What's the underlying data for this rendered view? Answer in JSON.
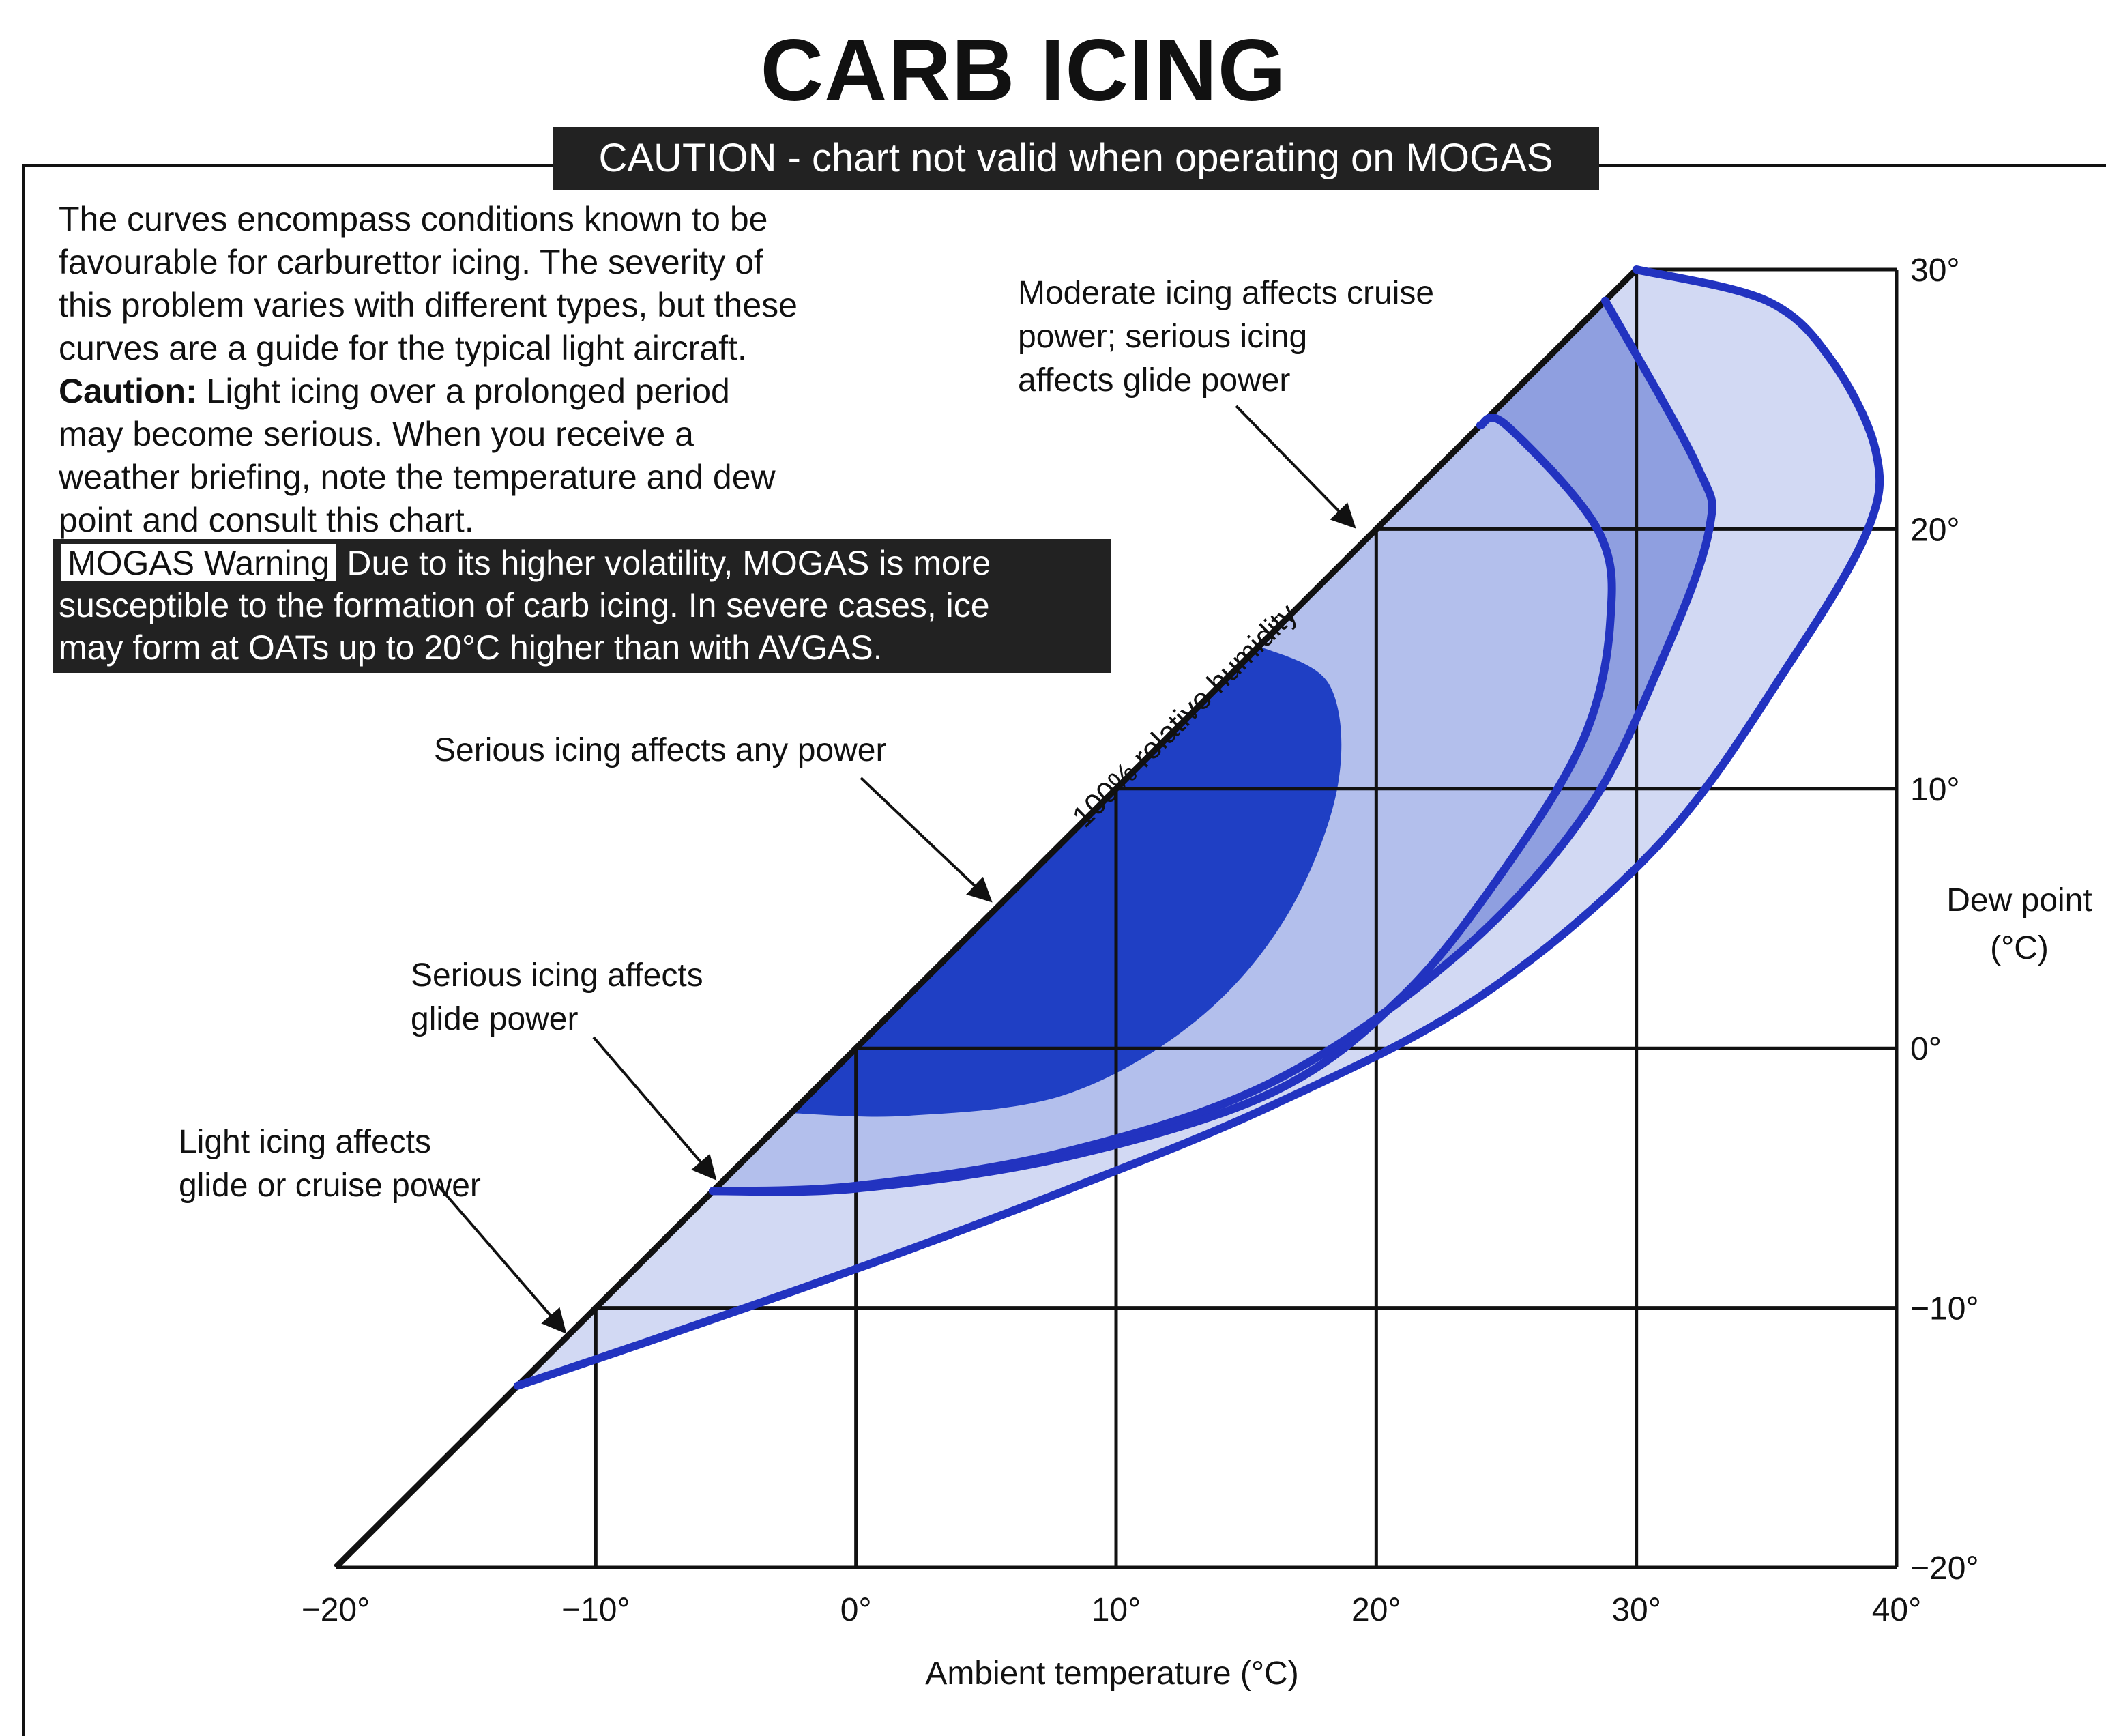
{
  "title": "CARB ICING",
  "caution_banner": "CAUTION - chart not valid when operating on MOGAS",
  "intro": {
    "lines": [
      "The curves encompass conditions known to be",
      "favourable for carburettor icing. The severity of",
      "this problem varies with different types, but these",
      "curves are a guide for the typical light aircraft."
    ],
    "caution_label": "Caution:",
    "caution_lines": [
      " Light icing over a prolonged period",
      "may become serious. When you receive a",
      "weather briefing, note the temperature and dew",
      "point and consult this chart."
    ]
  },
  "mogas": {
    "label": "MOGAS Warning",
    "lines": [
      "Due to its higher volatility, MOGAS is more",
      "susceptible to the formation of carb icing. In severe cases, ice",
      "may form at OATs up to 20°C higher than with AVGAS."
    ]
  },
  "annotations": {
    "moderate": [
      "Moderate icing affects cruise",
      "power; serious icing",
      "affects glide power"
    ],
    "serious_any": [
      "Serious icing affects any power"
    ],
    "serious_glide": [
      "Serious icing affects",
      "glide power"
    ],
    "light": [
      "Light icing affects",
      "glide or cruise power"
    ],
    "humidity": "100% relative humidity"
  },
  "colors": {
    "serious": "#1f3fc4",
    "moderate": "#8f9fe0",
    "light": "#d2d9f3",
    "curve": "#2233c0",
    "grid": "#111111"
  },
  "chart_data": {
    "type": "area",
    "title": "CARB ICING",
    "xlabel": "Ambient temperature (°C)",
    "ylabel": "Dew point (°C)",
    "xlim": [
      -20,
      40
    ],
    "ylim": [
      -20,
      30
    ],
    "x_ticks": [
      -20,
      -10,
      0,
      10,
      20,
      30,
      40
    ],
    "y_ticks": [
      -20,
      -10,
      0,
      10,
      20,
      30
    ],
    "x_tick_labels": [
      "−20°",
      "−10°",
      "0°",
      "10°",
      "20°",
      "30°",
      "40°"
    ],
    "y_tick_labels": [
      "−20°",
      "−10°",
      "0°",
      "10°",
      "20°",
      "30°"
    ],
    "grid": true,
    "saturation_line": {
      "name": "100% relative humidity",
      "from": [
        -20,
        -20
      ],
      "to": [
        30,
        30
      ]
    },
    "series": [
      {
        "name": "Light icing affects glide or cruise power",
        "boundary": [
          [
            -13,
            -13
          ],
          [
            -8,
            -11.3
          ],
          [
            0,
            -8.5
          ],
          [
            8,
            -5.5
          ],
          [
            16,
            -2.2
          ],
          [
            24,
            2
          ],
          [
            31,
            8
          ],
          [
            36,
            15
          ],
          [
            38.9,
            20
          ],
          [
            39.2,
            23
          ],
          [
            37.5,
            26.5
          ],
          [
            35,
            28.8
          ],
          [
            30,
            30
          ]
        ]
      },
      {
        "name": "Moderate icing affects cruise power; serious icing affects glide power",
        "boundary": [
          [
            -5.5,
            -5.5
          ],
          [
            0,
            -5.3
          ],
          [
            8,
            -4
          ],
          [
            16,
            -1.3
          ],
          [
            23,
            3.5
          ],
          [
            28,
            9
          ],
          [
            31,
            15
          ],
          [
            32.8,
            20
          ],
          [
            32.3,
            22.5
          ],
          [
            28.8,
            28.8
          ]
        ]
      },
      {
        "name": "Serious icing affects glide power",
        "boundary": [
          [
            -5.5,
            -5.5
          ],
          [
            0,
            -5.4
          ],
          [
            8,
            -4.2
          ],
          [
            16,
            -1.7
          ],
          [
            21,
            2
          ],
          [
            25,
            7
          ],
          [
            28,
            12
          ],
          [
            29,
            16.5
          ],
          [
            28.5,
            20
          ],
          [
            25,
            24
          ],
          [
            24,
            24
          ]
        ]
      },
      {
        "name": "Serious icing affects any power",
        "boundary": [
          [
            -2.5,
            -2.5
          ],
          [
            2,
            -2.6
          ],
          [
            8,
            -1.8
          ],
          [
            13,
            1
          ],
          [
            16.5,
            5
          ],
          [
            18.5,
            10
          ],
          [
            18.2,
            14
          ],
          [
            15.5,
            15.5
          ]
        ]
      }
    ]
  }
}
